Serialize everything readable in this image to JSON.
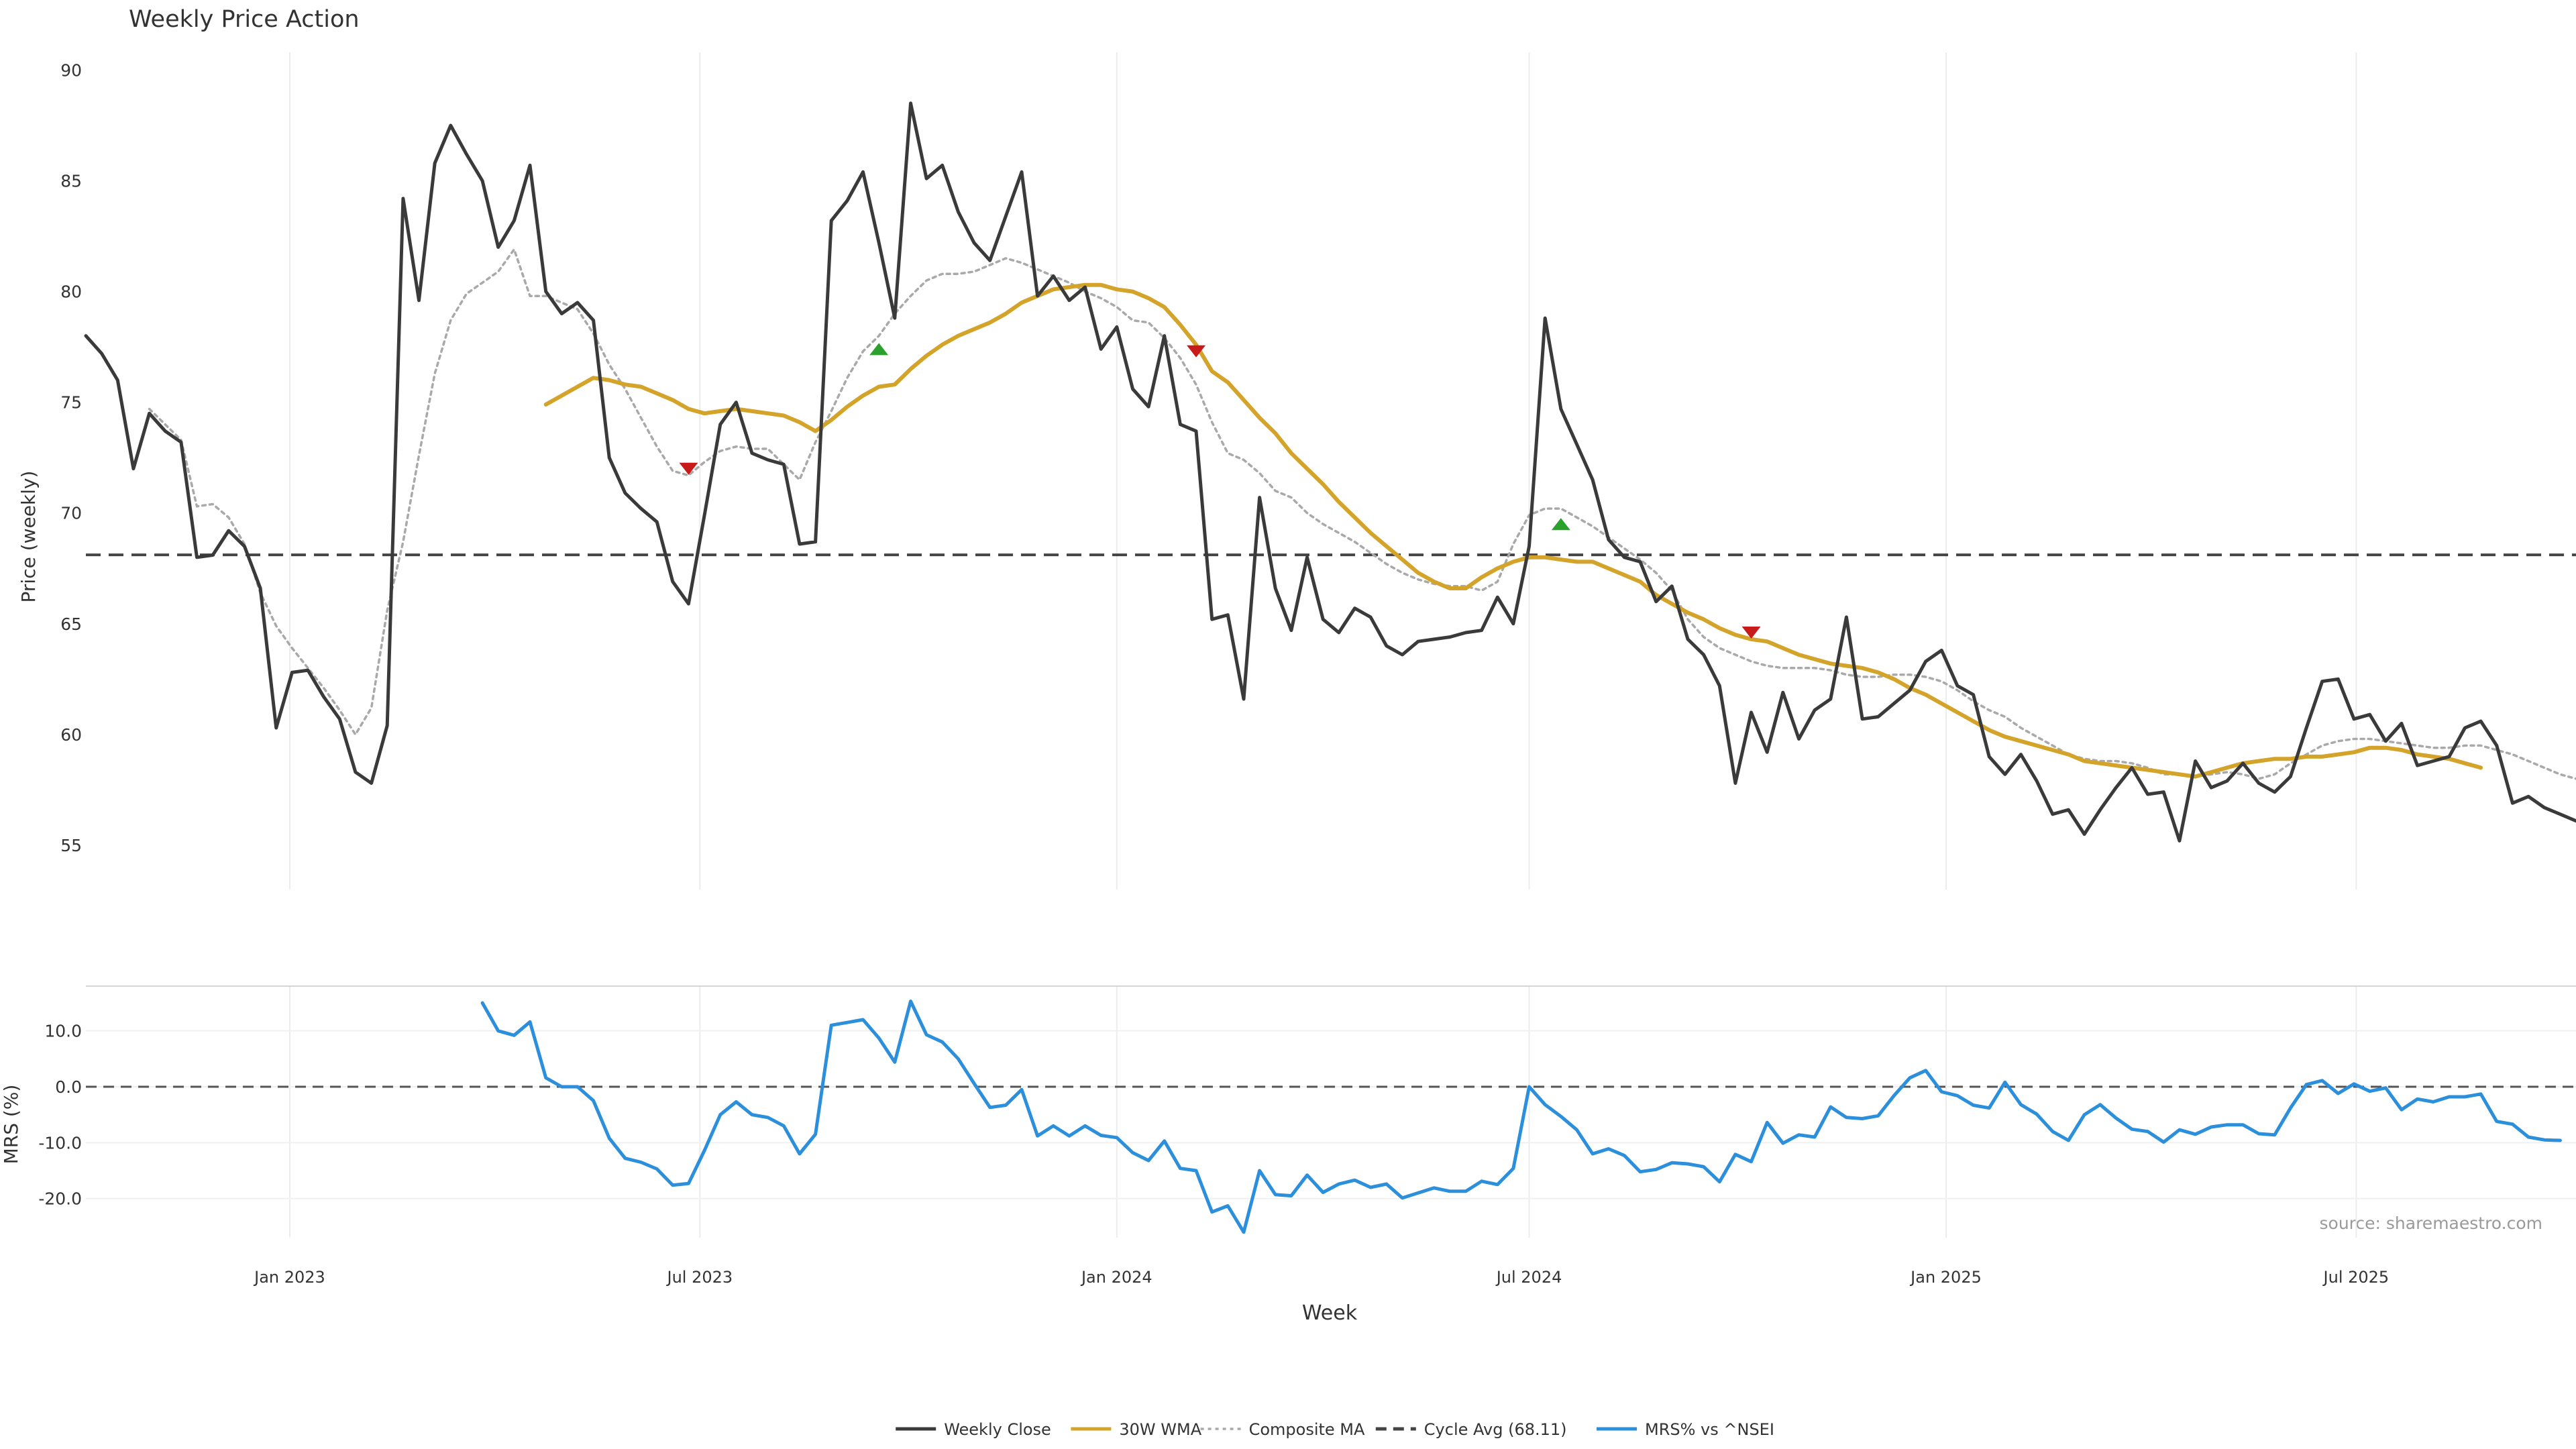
{
  "chart_data": [
    {
      "type": "line",
      "title": "Weekly Price Action",
      "ylabel": "Price (weekly)",
      "ylim": [
        53,
        90.8
      ],
      "yticks": [
        55,
        60,
        65,
        70,
        75,
        80,
        85,
        90
      ],
      "x_start": "2022-10-03",
      "x_step_days": 7,
      "series": [
        {
          "name": "Weekly Close",
          "color": "#3a3a3a",
          "style": "solid",
          "values": [
            78.0,
            77.2,
            76.0,
            72.0,
            74.5,
            73.7,
            73.2,
            68.0,
            68.1,
            69.2,
            68.5,
            66.6,
            60.3,
            62.8,
            62.9,
            61.7,
            60.7,
            58.3,
            57.8,
            60.4,
            84.2,
            79.6,
            85.8,
            87.5,
            86.2,
            85.0,
            82.0,
            83.2,
            85.7,
            80.0,
            79.0,
            79.5,
            78.7,
            72.5,
            70.9,
            70.2,
            69.6,
            66.9,
            65.9,
            69.9,
            74.0,
            75.0,
            72.7,
            72.4,
            72.2,
            68.6,
            68.7,
            83.2,
            84.1,
            85.4,
            82.2,
            78.8,
            88.5,
            85.1,
            85.7,
            83.6,
            82.2,
            81.4,
            83.4,
            85.4,
            79.8,
            80.7,
            79.6,
            80.2,
            77.4,
            78.4,
            75.6,
            74.8,
            78.0,
            74.0,
            73.7,
            65.2,
            65.4,
            61.6,
            70.7,
            66.6,
            64.7,
            68.0,
            65.2,
            64.6,
            65.7,
            65.3,
            64.0,
            63.6,
            64.2,
            64.3,
            64.4,
            64.6,
            64.7,
            66.2,
            65.0,
            68.5,
            78.8,
            74.7,
            73.1,
            71.5,
            68.8,
            68.0,
            67.8,
            66.0,
            66.7,
            64.3,
            63.6,
            62.2,
            57.8,
            61.0,
            59.2,
            61.9,
            59.8,
            61.1,
            61.6,
            65.3,
            60.7,
            60.8,
            61.4,
            62.0,
            63.3,
            63.8,
            62.2,
            61.8,
            59.0,
            58.2,
            59.1,
            57.9,
            56.4,
            56.6,
            55.5,
            56.6,
            57.6,
            58.5,
            57.3,
            57.4,
            55.2,
            58.8,
            57.6,
            57.9,
            58.7,
            57.8,
            57.4,
            58.1,
            60.3,
            62.4,
            62.5,
            60.7,
            60.9,
            59.7,
            60.5,
            58.6,
            58.8,
            59.0,
            60.3,
            60.6,
            59.5,
            56.9,
            57.2,
            56.7,
            56.4,
            56.1
          ]
        },
        {
          "name": "30W WMA",
          "color": "#d4a42a",
          "style": "solid",
          "start_index": 29,
          "values": [
            74.9,
            75.3,
            75.7,
            76.1,
            76.0,
            75.8,
            75.7,
            75.4,
            75.1,
            74.7,
            74.5,
            74.6,
            74.7,
            74.6,
            74.5,
            74.4,
            74.1,
            73.7,
            74.2,
            74.8,
            75.3,
            75.7,
            75.8,
            76.5,
            77.1,
            77.6,
            78.0,
            78.3,
            78.6,
            79.0,
            79.5,
            79.8,
            80.1,
            80.2,
            80.3,
            80.3,
            80.1,
            80.0,
            79.7,
            79.3,
            78.5,
            77.6,
            76.4,
            75.9,
            75.1,
            74.3,
            73.6,
            72.7,
            72.0,
            71.3,
            70.5,
            69.8,
            69.1,
            68.5,
            67.9,
            67.3,
            66.9,
            66.6,
            66.6,
            67.1,
            67.5,
            67.8,
            68.0,
            68.0,
            67.9,
            67.8,
            67.8,
            67.5,
            67.2,
            66.9,
            66.3,
            65.9,
            65.5,
            65.2,
            64.8,
            64.5,
            64.3,
            64.2,
            63.9,
            63.6,
            63.4,
            63.2,
            63.1,
            63.0,
            62.8,
            62.5,
            62.1,
            61.8,
            61.4,
            61.0,
            60.6,
            60.2,
            59.9,
            59.7,
            59.5,
            59.3,
            59.1,
            58.8,
            58.7,
            58.6,
            58.5,
            58.4,
            58.3,
            58.2,
            58.1,
            58.3,
            58.5,
            58.7,
            58.8,
            58.9,
            58.9,
            59.0,
            59.0,
            59.1,
            59.2,
            59.4,
            59.4,
            59.3,
            59.1,
            59.0,
            58.9,
            58.7,
            58.5
          ]
        },
        {
          "name": "Composite MA",
          "color": "#a9a9a9",
          "style": "dotted",
          "start_index": 4,
          "values": [
            74.7,
            74.0,
            73.3,
            70.3,
            70.4,
            69.8,
            68.6,
            66.4,
            64.9,
            63.9,
            63.0,
            62.1,
            61.1,
            60.0,
            61.2,
            65.6,
            68.7,
            72.6,
            76.3,
            78.7,
            79.9,
            80.4,
            80.9,
            81.9,
            79.8,
            79.8,
            79.5,
            79.2,
            78.1,
            76.7,
            75.6,
            74.3,
            73.0,
            71.9,
            71.7,
            72.3,
            72.8,
            73.0,
            72.9,
            72.9,
            72.2,
            71.5,
            73.2,
            74.6,
            76.1,
            77.3,
            78.0,
            79.0,
            79.8,
            80.5,
            80.8,
            80.8,
            80.9,
            81.2,
            81.5,
            81.3,
            81.0,
            80.7,
            80.4,
            80.0,
            79.7,
            79.3,
            78.7,
            78.6,
            77.9,
            77.0,
            75.8,
            74.1,
            72.7,
            72.4,
            71.8,
            71.0,
            70.7,
            70.0,
            69.5,
            69.1,
            68.7,
            68.2,
            67.7,
            67.3,
            67.0,
            66.8,
            66.7,
            66.7,
            66.5,
            66.9,
            68.6,
            69.9,
            70.2,
            70.2,
            69.8,
            69.4,
            68.9,
            68.4,
            67.9,
            67.3,
            66.5,
            65.2,
            64.4,
            63.9,
            63.6,
            63.3,
            63.1,
            63.0,
            63.0,
            63.0,
            62.9,
            62.7,
            62.6,
            62.6,
            62.7,
            62.7,
            62.6,
            62.4,
            62.0,
            61.5,
            61.1,
            60.8,
            60.3,
            59.9,
            59.5,
            59.1,
            58.9,
            58.8,
            58.8,
            58.7,
            58.5,
            58.2,
            58.2,
            58.1,
            58.2,
            58.3,
            58.2,
            58.0,
            58.2,
            58.7,
            59.1,
            59.5,
            59.7,
            59.8,
            59.8,
            59.7,
            59.6,
            59.5,
            59.4,
            59.4,
            59.5,
            59.5,
            59.3,
            59.1,
            58.8,
            58.5,
            58.2,
            58.0
          ]
        },
        {
          "name": "Cycle Avg (68.11)",
          "color": "#444444",
          "style": "dashed",
          "constant": 68.11
        }
      ],
      "signals": [
        {
          "index": 38,
          "value": 72.0,
          "dir": "down",
          "color": "#c81a1a"
        },
        {
          "index": 50,
          "value": 77.4,
          "dir": "up",
          "color": "#2ca02c"
        },
        {
          "index": 70,
          "value": 77.3,
          "dir": "down",
          "color": "#c81a1a"
        },
        {
          "index": 93,
          "value": 69.5,
          "dir": "up",
          "color": "#2ca02c"
        },
        {
          "index": 105,
          "value": 64.6,
          "dir": "down",
          "color": "#c81a1a"
        }
      ]
    },
    {
      "type": "line",
      "ylabel": "MRS (%)",
      "ylim": [
        -27,
        18
      ],
      "yticks": [
        -20.0,
        -10.0,
        0.0,
        10.0
      ],
      "xlabel": "Week",
      "xticks": [
        "Jan 2023",
        "Jul 2023",
        "Jan 2024",
        "Jul 2024",
        "Jan 2025",
        "Jul 2025"
      ],
      "xtick_dates": [
        "2023-01-01",
        "2023-07-01",
        "2024-01-01",
        "2024-07-01",
        "2025-01-01",
        "2025-07-01"
      ],
      "zero_line": 0,
      "series": [
        {
          "name": "MRS% vs ^NSEI",
          "color": "#2b8fdc",
          "style": "solid",
          "start_index": 25,
          "values": [
            15.0,
            10.0,
            9.2,
            11.6,
            1.6,
            0.0,
            0.0,
            -2.5,
            -9.2,
            -12.8,
            -13.5,
            -14.7,
            -17.6,
            -17.3,
            -11.4,
            -5.0,
            -2.7,
            -5.0,
            -5.5,
            -7.0,
            -12.0,
            -8.5,
            11.0,
            11.5,
            12.0,
            8.7,
            4.4,
            15.3,
            9.3,
            8.0,
            5.0,
            0.6,
            -3.7,
            -3.3,
            -0.5,
            -8.8,
            -7.0,
            -8.8,
            -7.0,
            -8.7,
            -9.1,
            -11.8,
            -13.2,
            -9.7,
            -14.6,
            -15.0,
            -22.4,
            -21.3,
            -26.0,
            -15.0,
            -19.3,
            -19.5,
            -15.8,
            -18.9,
            -17.4,
            -16.7,
            -18.0,
            -17.4,
            -19.9,
            -19.0,
            -18.1,
            -18.7,
            -18.7,
            -16.9,
            -17.5,
            -14.6,
            0.0,
            -3.2,
            -5.3,
            -7.7,
            -12.0,
            -11.1,
            -12.3,
            -15.2,
            -14.8,
            -13.6,
            -13.8,
            -14.3,
            -17.0,
            -12.1,
            -13.4,
            -6.4,
            -10.1,
            -8.6,
            -9.0,
            -3.6,
            -5.5,
            -5.7,
            -5.2,
            -1.6,
            1.6,
            2.9,
            -0.9,
            -1.6,
            -3.3,
            -3.8,
            0.8,
            -3.2,
            -4.9,
            -8.0,
            -9.6,
            -5.0,
            -3.2,
            -5.6,
            -7.6,
            -8.0,
            -9.9,
            -7.7,
            -8.5,
            -7.2,
            -6.8,
            -6.8,
            -8.4,
            -8.6,
            -3.8,
            0.4,
            1.1,
            -1.2,
            0.5,
            -0.8,
            -0.2,
            -4.1,
            -2.2,
            -2.7,
            -1.8,
            -1.8,
            -1.3,
            -6.2,
            -6.7,
            -9.0,
            -9.5,
            -9.6
          ]
        }
      ]
    }
  ],
  "footer": {
    "source": "source: sharemaestro.com"
  },
  "legend": [
    {
      "label": "Weekly Close",
      "color": "#3a3a3a",
      "style": "solid"
    },
    {
      "label": "30W WMA",
      "color": "#d4a42a",
      "style": "solid"
    },
    {
      "label": "Composite MA",
      "color": "#a9a9a9",
      "style": "dotted"
    },
    {
      "label": "Cycle Avg (68.11)",
      "color": "#444444",
      "style": "dashed"
    },
    {
      "label": "MRS% vs ^NSEI",
      "color": "#2b8fdc",
      "style": "solid"
    }
  ]
}
